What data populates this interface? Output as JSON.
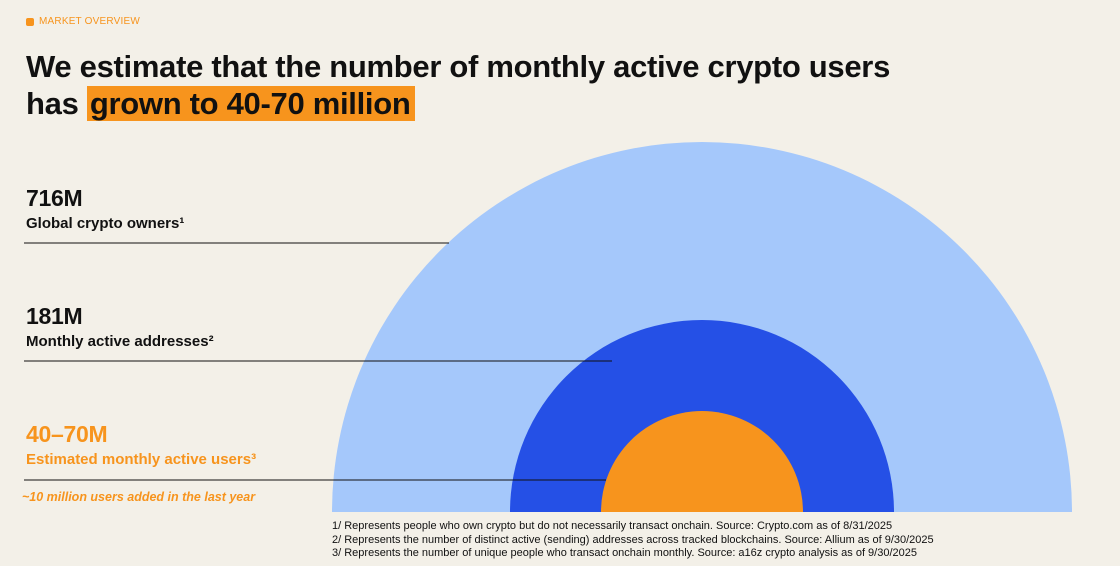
{
  "section_tag": "MARKET OVERVIEW",
  "headline": {
    "line1": "We estimate that the number of monthly active crypto users",
    "line2_prefix": "has ",
    "line2_highlight": "grown to 40-70 million"
  },
  "colors": {
    "background": "#f3f0e8",
    "accent_orange": "#f7941d",
    "light_blue": "#a5c8fb",
    "dark_blue": "#2550e6"
  },
  "chart_data": {
    "type": "nested-semicircle",
    "title": "We estimate that the number of monthly active crypto users has grown to 40-70 million",
    "series": [
      {
        "name": "Global crypto owners",
        "display": "716M",
        "value_millions": 716,
        "label": "Global crypto owners¹",
        "color": "#a5c8fb"
      },
      {
        "name": "Monthly active addresses",
        "display": "181M",
        "value_millions": 181,
        "label": "Monthly active addresses²",
        "color": "#2550e6"
      },
      {
        "name": "Estimated monthly active users",
        "display": "40–70M",
        "value_millions": [
          40,
          70
        ],
        "label": "Estimated monthly active users³",
        "color": "#f7941d"
      }
    ],
    "note": "~10 million users added in the last year"
  },
  "footnotes": [
    "1/ Represents people who own crypto but do not necessarily transact onchain. Source: Crypto.com as of 8/31/2025",
    "2/ Represents the number of distinct active (sending) addresses across tracked blockchains. Source: Allium as of 9/30/2025",
    "3/ Represents the number of unique people who transact onchain monthly. Source: a16z crypto analysis as of 9/30/2025"
  ]
}
